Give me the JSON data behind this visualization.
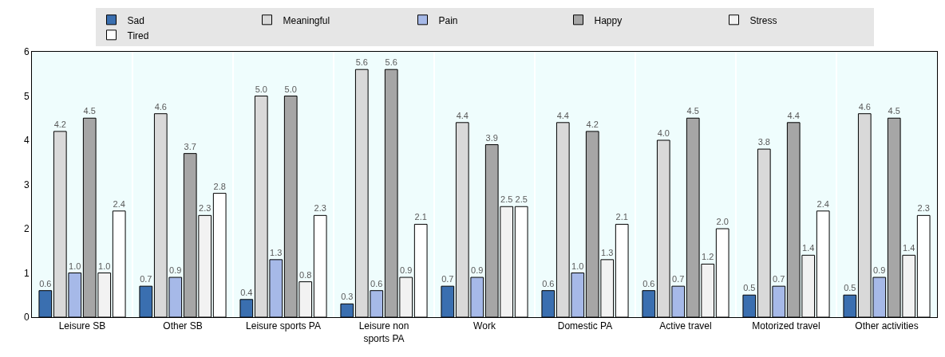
{
  "chart_data": {
    "type": "bar",
    "categories": [
      "Leisure SB",
      "Other SB",
      "Leisure sports PA",
      "Leisure non sports PA",
      "Work",
      "Domestic PA",
      "Active travel",
      "Motorized travel",
      "Other activities"
    ],
    "series": [
      {
        "name": "Sad",
        "color": "#3a6fb0",
        "values": [
          0.6,
          0.7,
          0.4,
          0.3,
          0.7,
          0.6,
          0.6,
          0.5,
          0.5
        ],
        "value_labels": [
          "0.6",
          "0.7",
          "0.4",
          "0.3",
          "0.7",
          "0.6",
          "0.6",
          "0.5",
          "0.5"
        ]
      },
      {
        "name": "Meaningful",
        "color": "#d9d9d9",
        "values": [
          4.2,
          4.6,
          5.0,
          5.6,
          4.4,
          4.4,
          4.0,
          3.8,
          4.6
        ],
        "value_labels": [
          "4.2",
          "4.6",
          "5.0",
          "5.6",
          "4.4",
          "4.4",
          "4.0",
          "3.8",
          "4.6"
        ]
      },
      {
        "name": "Pain",
        "color": "#a6b9e8",
        "values": [
          1.0,
          0.9,
          1.3,
          0.6,
          0.9,
          1.0,
          0.7,
          0.7,
          0.9
        ],
        "value_labels": [
          "1.0",
          "0.9",
          "1.3",
          "0.6",
          "0.9",
          "1.0",
          "0.7",
          "0.7",
          "0.9"
        ]
      },
      {
        "name": "Happy",
        "color": "#a6a6a6",
        "values": [
          4.5,
          3.7,
          5.0,
          5.6,
          3.9,
          4.2,
          4.5,
          4.4,
          4.5
        ],
        "value_labels": [
          "4.5",
          "3.7",
          "5.0",
          "5.6",
          "3.9",
          "4.2",
          "4.5",
          "4.4",
          "4.5"
        ]
      },
      {
        "name": "Stress",
        "color": "#f2f2f2",
        "values": [
          1.0,
          2.3,
          0.8,
          0.9,
          2.5,
          1.3,
          1.2,
          1.4,
          1.4
        ],
        "value_labels": [
          "1.0",
          "2.3",
          "0.8",
          "0.9",
          "2.5",
          "1.3",
          "1.2",
          "1.4",
          "1.4"
        ]
      },
      {
        "name": "Tired",
        "color": "#ffffff",
        "values": [
          2.4,
          2.8,
          2.3,
          2.1,
          2.5,
          2.1,
          2.0,
          2.4,
          2.3
        ],
        "value_labels": [
          "2.4",
          "2.8",
          "2.3",
          "2.1",
          "2.5",
          "2.1",
          "2.0",
          "2.4",
          "2.3"
        ]
      }
    ],
    "ylim": [
      0,
      6
    ],
    "yticks": [
      0,
      1,
      2,
      3,
      4,
      5,
      6
    ],
    "grid": false,
    "legend": "top"
  }
}
